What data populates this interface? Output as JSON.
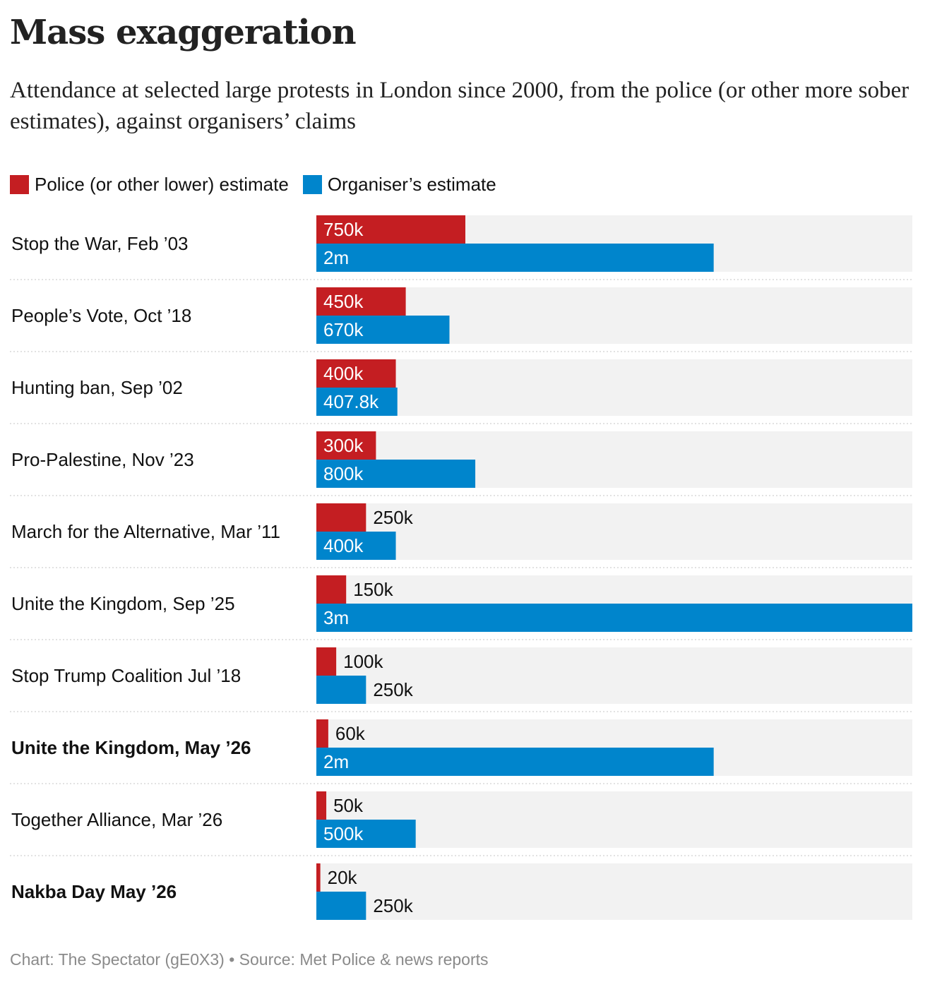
{
  "title": "Mass exaggeration",
  "subtitle": "Attendance at selected large protests in London since 2000, from the police (or other more sober estimates), against organisers’ claims",
  "legend": {
    "police_label": "Police (or other lower) estimate",
    "organiser_label": "Organiser’s estimate"
  },
  "colors": {
    "police": "#c41e22",
    "organiser": "#0085cc",
    "track": "#f2f2f2",
    "divider": "#d8d8d8"
  },
  "footer": "Chart: The Spectator (gE0X3) • Source: Met Police & news reports",
  "chart_data": {
    "type": "bar",
    "orientation": "horizontal",
    "xlim": [
      0,
      3000000
    ],
    "grid": false,
    "legend_position": "top-left",
    "categories": [
      "Stop the War, Feb ’03",
      "People’s Vote, Oct ’18",
      "Hunting ban, Sep ’02",
      "Pro-Palestine, Nov ’23",
      "March for the Alternative, Mar ’11",
      "Unite the Kingdom, Sep ’25",
      "Stop Trump Coalition Jul ’18",
      "Unite the Kingdom, May ’26",
      "Together Alliance, Mar ’26",
      "Nakba Day May ’26"
    ],
    "bold_categories": [
      "Unite the Kingdom, May ’26",
      "Nakba Day May ’26"
    ],
    "series": [
      {
        "name": "Police (or other lower) estimate",
        "values": [
          750000,
          450000,
          400000,
          300000,
          250000,
          150000,
          100000,
          60000,
          50000,
          20000
        ],
        "labels": [
          "750k",
          "450k",
          "400k",
          "300k",
          "250k",
          "150k",
          "100k",
          "60k",
          "50k",
          "20k"
        ]
      },
      {
        "name": "Organiser’s estimate",
        "values": [
          2000000,
          670000,
          407800,
          800000,
          400000,
          3000000,
          250000,
          2000000,
          500000,
          250000
        ],
        "labels": [
          "2m",
          "670k",
          "407.8k",
          "800k",
          "400k",
          "3m",
          "250k",
          "2m",
          "500k",
          "250k"
        ]
      }
    ]
  }
}
